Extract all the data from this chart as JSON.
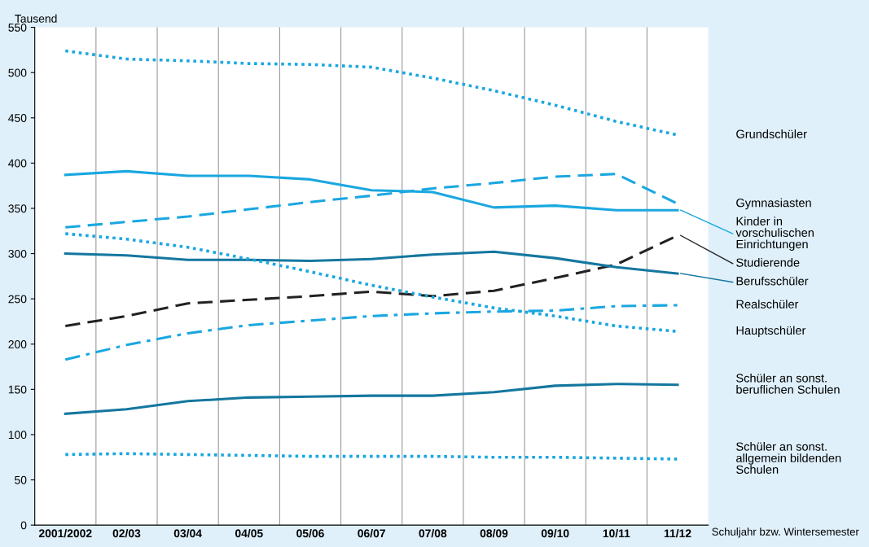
{
  "chart_data": {
    "type": "line",
    "ylabel": "Tausend",
    "xlabel": "Schuljahr bzw. Wintersemester",
    "categories": [
      "2001/2002",
      "02/03",
      "03/04",
      "04/05",
      "05/06",
      "06/07",
      "07/08",
      "08/09",
      "09/10",
      "10/11",
      "11/12"
    ],
    "ylim": [
      0,
      550
    ],
    "yticks": [
      0,
      50,
      100,
      150,
      200,
      250,
      300,
      350,
      400,
      450,
      500,
      550
    ],
    "grid": "x",
    "legend": "right",
    "marker": "none",
    "series": [
      {
        "name": "Grundschüler",
        "color": "#1aa7e0",
        "line_style": "dotted",
        "values": [
          524,
          515,
          513,
          510,
          509,
          506,
          494,
          480,
          464,
          446,
          431
        ]
      },
      {
        "name": "Gymnasiasten",
        "color": "#1aa7e0",
        "line_style": "dashed",
        "values": [
          329,
          335,
          341,
          349,
          357,
          364,
          372,
          378,
          385,
          388,
          355
        ]
      },
      {
        "name": "Kinder in\nvorschulischen\nEinrichtungen",
        "color": "#1aa7e0",
        "line_style": "solid",
        "values": [
          387,
          391,
          386,
          386,
          382,
          370,
          368,
          351,
          353,
          348,
          348
        ]
      },
      {
        "name": "Studierende",
        "color": "#222222",
        "line_style": "dashed",
        "values": [
          220,
          231,
          245,
          249,
          253,
          258,
          253,
          259,
          273,
          288,
          320
        ]
      },
      {
        "name": "Berufsschüler",
        "color": "#14779f",
        "line_style": "solid",
        "values": [
          300,
          298,
          293,
          293,
          292,
          294,
          299,
          302,
          295,
          285,
          278
        ]
      },
      {
        "name": "Realschüler",
        "color": "#1aa7e0",
        "line_style": "dashdot",
        "values": [
          183,
          199,
          212,
          221,
          226,
          231,
          234,
          236,
          237,
          242,
          243
        ]
      },
      {
        "name": "Hauptschüler",
        "color": "#1aa7e0",
        "line_style": "dotted",
        "values": [
          322,
          316,
          307,
          294,
          280,
          265,
          252,
          240,
          231,
          220,
          214
        ]
      },
      {
        "name": "Schüler an sonst.\nberuflichen Schulen",
        "color": "#14779f",
        "line_style": "solid",
        "values": [
          123,
          128,
          137,
          141,
          142,
          143,
          143,
          147,
          154,
          156,
          155
        ]
      },
      {
        "name": "Schüler an sonst.\nallgemein bildenden\nSchulen",
        "color": "#1aa7e0",
        "line_style": "dotted",
        "values": [
          78,
          79,
          78,
          77,
          76,
          76,
          76,
          75,
          75,
          74,
          73
        ]
      }
    ]
  }
}
